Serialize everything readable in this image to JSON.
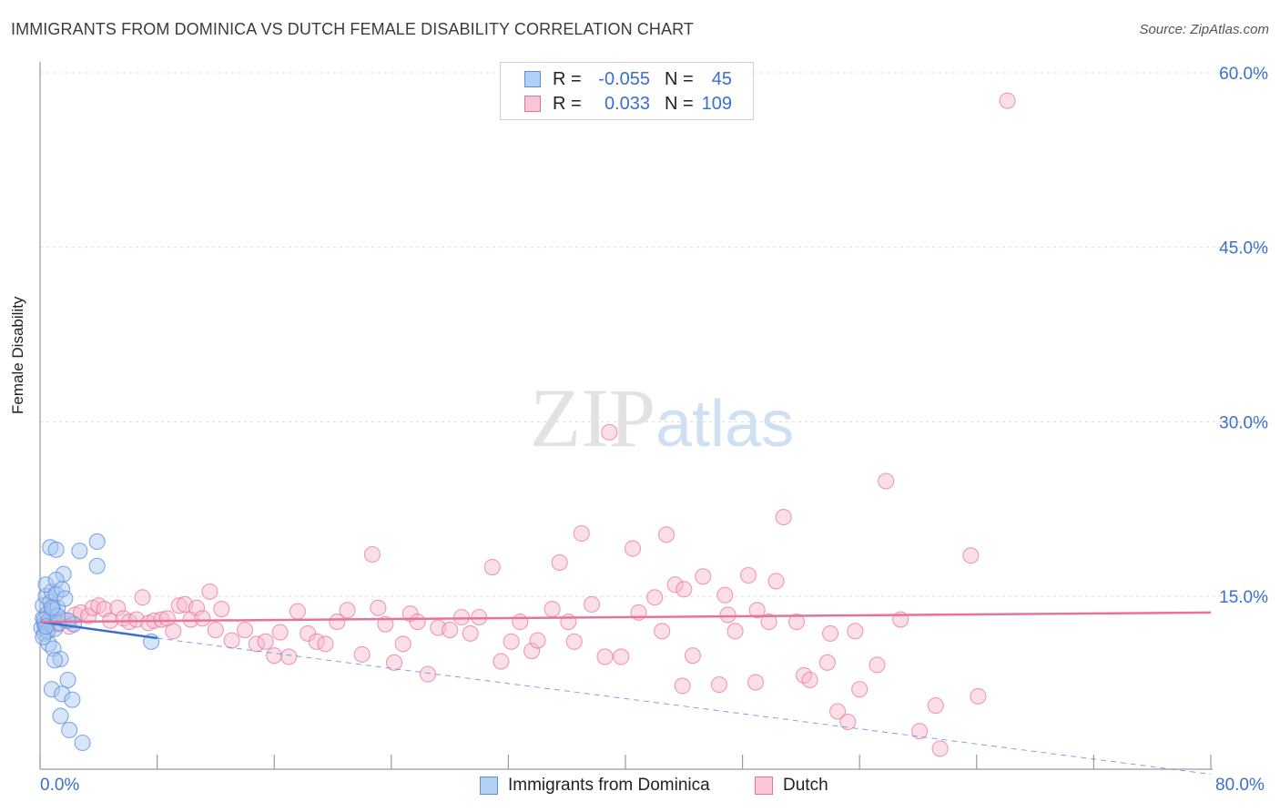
{
  "title": "IMMIGRANTS FROM DOMINICA VS DUTCH FEMALE DISABILITY CORRELATION CHART",
  "source": "Source: ZipAtlas.com",
  "watermark": {
    "zip": "ZIP",
    "atlas": "atlas"
  },
  "legend_top": {
    "rows": [
      {
        "r_label": "R =",
        "r_value": "-0.055",
        "n_label": "N =",
        "n_value": "45"
      },
      {
        "r_label": "R =",
        "r_value": "0.033",
        "n_label": "N =",
        "n_value": "109"
      }
    ]
  },
  "legend_bottom": {
    "series1": "Immigrants from Dominica",
    "series2": "Dutch"
  },
  "x_axis": {
    "min_label": "0.0%",
    "max_label": "80.0%"
  },
  "colors": {
    "blue": "#5b8fdc",
    "blue_fill": "#a9c6f0",
    "pink": "#e8729c",
    "pink_fill": "#f6b8cd",
    "tick_label": "#3a6fd0"
  },
  "chart_data": {
    "type": "scatter",
    "title": "IMMIGRANTS FROM DOMINICA VS DUTCH FEMALE DISABILITY CORRELATION CHART",
    "xlabel": "",
    "ylabel": "Female Disability",
    "xlim": [
      0,
      80
    ],
    "ylim": [
      0,
      62
    ],
    "y_ticks": [
      15,
      30,
      45,
      60
    ],
    "y_tick_labels": [
      "15.0%",
      "30.0%",
      "45.0%",
      "60.0%"
    ],
    "x_tick_positions": [
      0,
      8,
      16,
      24,
      32,
      40,
      48,
      56,
      64,
      72,
      80
    ],
    "series": [
      {
        "name": "Immigrants from Dominica",
        "r": -0.055,
        "n": 45,
        "trend": {
          "x0": 0,
          "y0": 12.8,
          "x1": 8,
          "y1": 11.4,
          "dash_to_x": 80,
          "dash_to_y": -0.3
        },
        "points": [
          [
            0.1,
            12.3
          ],
          [
            0.2,
            13.1
          ],
          [
            0.3,
            12.6
          ],
          [
            0.2,
            14.2
          ],
          [
            0.4,
            15.0
          ],
          [
            0.5,
            13.5
          ],
          [
            0.3,
            11.8
          ],
          [
            0.6,
            12.9
          ],
          [
            0.7,
            14.5
          ],
          [
            0.8,
            15.4
          ],
          [
            0.4,
            16.0
          ],
          [
            0.9,
            13.8
          ],
          [
            1.0,
            12.2
          ],
          [
            1.1,
            15.2
          ],
          [
            1.2,
            14.0
          ],
          [
            0.6,
            10.9
          ],
          [
            0.9,
            10.5
          ],
          [
            1.4,
            9.6
          ],
          [
            1.0,
            9.5
          ],
          [
            0.8,
            7.0
          ],
          [
            1.5,
            6.6
          ],
          [
            1.9,
            7.8
          ],
          [
            2.2,
            6.1
          ],
          [
            1.4,
            4.7
          ],
          [
            2.0,
            3.5
          ],
          [
            2.9,
            2.4
          ],
          [
            0.7,
            19.2
          ],
          [
            1.1,
            19.0
          ],
          [
            2.7,
            18.9
          ],
          [
            3.9,
            19.7
          ],
          [
            3.9,
            17.6
          ],
          [
            1.6,
            16.9
          ],
          [
            1.1,
            16.4
          ],
          [
            1.5,
            15.6
          ],
          [
            1.7,
            14.8
          ],
          [
            0.3,
            13.0
          ],
          [
            0.5,
            12.0
          ],
          [
            1.3,
            12.7
          ],
          [
            2.3,
            12.6
          ],
          [
            1.9,
            12.9
          ],
          [
            0.2,
            11.5
          ],
          [
            7.6,
            11.1
          ],
          [
            1.2,
            13.3
          ],
          [
            0.8,
            14.0
          ],
          [
            0.4,
            12.4
          ]
        ]
      },
      {
        "name": "Dutch",
        "r": 0.033,
        "n": 109,
        "trend": {
          "x0": 0,
          "y0": 12.8,
          "x1": 80,
          "y1": 13.6
        },
        "points": [
          [
            0.8,
            13.3
          ],
          [
            1.2,
            12.6
          ],
          [
            1.6,
            13.0
          ],
          [
            2.0,
            12.4
          ],
          [
            2.4,
            13.4
          ],
          [
            2.8,
            13.6
          ],
          [
            3.3,
            13.3
          ],
          [
            3.6,
            14.0
          ],
          [
            4.0,
            14.2
          ],
          [
            4.4,
            13.9
          ],
          [
            4.8,
            12.9
          ],
          [
            5.3,
            14.0
          ],
          [
            5.7,
            13.1
          ],
          [
            6.1,
            12.8
          ],
          [
            6.6,
            13.0
          ],
          [
            7.0,
            14.9
          ],
          [
            7.4,
            12.7
          ],
          [
            7.8,
            12.9
          ],
          [
            8.3,
            13.0
          ],
          [
            8.7,
            13.1
          ],
          [
            9.1,
            12.0
          ],
          [
            9.5,
            14.2
          ],
          [
            9.9,
            14.3
          ],
          [
            10.3,
            13.0
          ],
          [
            10.7,
            14.0
          ],
          [
            11.1,
            13.1
          ],
          [
            11.6,
            15.4
          ],
          [
            12.0,
            12.1
          ],
          [
            12.4,
            13.9
          ],
          [
            13.1,
            11.2
          ],
          [
            14.0,
            12.1
          ],
          [
            14.8,
            10.9
          ],
          [
            15.4,
            11.1
          ],
          [
            16.0,
            9.9
          ],
          [
            16.4,
            11.9
          ],
          [
            17.0,
            9.8
          ],
          [
            17.6,
            13.7
          ],
          [
            18.3,
            11.8
          ],
          [
            18.9,
            11.1
          ],
          [
            19.5,
            10.9
          ],
          [
            20.3,
            12.8
          ],
          [
            21.0,
            13.8
          ],
          [
            22.0,
            10.0
          ],
          [
            22.7,
            18.6
          ],
          [
            23.1,
            14.0
          ],
          [
            23.6,
            12.6
          ],
          [
            24.2,
            9.3
          ],
          [
            24.8,
            10.9
          ],
          [
            25.3,
            13.5
          ],
          [
            25.8,
            12.8
          ],
          [
            26.5,
            8.3
          ],
          [
            27.2,
            12.3
          ],
          [
            28.0,
            12.1
          ],
          [
            28.8,
            13.2
          ],
          [
            29.4,
            11.8
          ],
          [
            30.0,
            13.2
          ],
          [
            30.9,
            17.5
          ],
          [
            31.5,
            9.4
          ],
          [
            32.2,
            11.1
          ],
          [
            32.8,
            12.8
          ],
          [
            33.6,
            10.3
          ],
          [
            34.0,
            11.2
          ],
          [
            35.0,
            13.9
          ],
          [
            35.5,
            17.9
          ],
          [
            36.1,
            12.8
          ],
          [
            36.5,
            11.1
          ],
          [
            37.0,
            20.4
          ],
          [
            37.7,
            14.3
          ],
          [
            38.6,
            9.8
          ],
          [
            39.7,
            9.8
          ],
          [
            40.5,
            19.1
          ],
          [
            40.9,
            13.6
          ],
          [
            42.5,
            12.0
          ],
          [
            42.8,
            20.3
          ],
          [
            43.4,
            16.0
          ],
          [
            43.9,
            7.3
          ],
          [
            44.6,
            9.9
          ],
          [
            45.3,
            16.7
          ],
          [
            46.4,
            7.4
          ],
          [
            47.0,
            13.4
          ],
          [
            47.5,
            12.0
          ],
          [
            48.4,
            16.8
          ],
          [
            48.9,
            7.6
          ],
          [
            49.8,
            12.8
          ],
          [
            50.3,
            16.3
          ],
          [
            51.7,
            12.8
          ],
          [
            52.2,
            8.2
          ],
          [
            52.6,
            7.8
          ],
          [
            53.8,
            9.3
          ],
          [
            54.0,
            11.8
          ],
          [
            54.5,
            5.1
          ],
          [
            55.2,
            4.2
          ],
          [
            56.0,
            7.0
          ],
          [
            57.2,
            9.1
          ],
          [
            57.8,
            24.9
          ],
          [
            58.8,
            13.0
          ],
          [
            60.1,
            3.4
          ],
          [
            61.2,
            5.6
          ],
          [
            61.5,
            1.9
          ],
          [
            63.6,
            18.5
          ],
          [
            64.1,
            6.4
          ],
          [
            66.1,
            57.6
          ],
          [
            38.9,
            29.1
          ],
          [
            50.8,
            21.8
          ],
          [
            55.7,
            12.0
          ],
          [
            42.0,
            14.9
          ],
          [
            44.0,
            15.6
          ],
          [
            46.8,
            15.1
          ],
          [
            49.0,
            13.8
          ]
        ]
      }
    ]
  }
}
